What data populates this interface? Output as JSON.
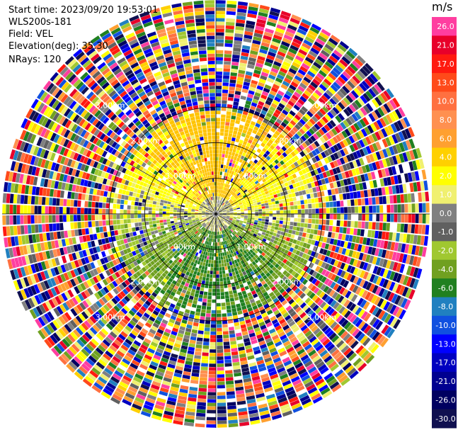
{
  "header": {
    "start_time": "Start time: 2023/09/20 19:53:01",
    "instrument": "WLS200s-181",
    "field": "Field: VEL",
    "elevation": "Elevation(deg): 35.30",
    "nrays": "NRays: 120"
  },
  "colorbar": {
    "unit": "m/s",
    "ticks": [
      "26.0",
      "21.0",
      "17.0",
      "13.0",
      "10.0",
      "8.0",
      "6.0",
      "4.0",
      "2.0",
      "1.0",
      "0.0",
      "-1.0",
      "-2.0",
      "-4.0",
      "-6.0",
      "-8.0",
      "-10.0",
      "-13.0",
      "-17.0",
      "-21.0",
      "-26.0",
      "-30.0"
    ],
    "colors": [
      "#ff3ea0",
      "#e8002a",
      "#ff1a10",
      "#ff4a1a",
      "#ff7040",
      "#ff9050",
      "#ffa030",
      "#ffd000",
      "#ffff00",
      "#f0f070",
      "#808080",
      "#606060",
      "#a0c830",
      "#70a020",
      "#208020",
      "#2080c0",
      "#1050e0",
      "#0000ff",
      "#0000c0",
      "#000090",
      "#000060",
      "#101050"
    ]
  },
  "chart_data": {
    "type": "ppi",
    "title": "",
    "field": "VEL",
    "elevation_deg": 35.3,
    "nrays": 120,
    "unit": "m/s",
    "vmin": -30,
    "vmax": 30,
    "max_range_km": 6.0,
    "range_ring_labels": [
      "1.00km",
      "2.00km",
      "3.00km"
    ],
    "ring_radii_km": [
      1,
      2,
      3
    ],
    "spoke_angles_deg": [
      0,
      30,
      60,
      90,
      120,
      150,
      180,
      210,
      240,
      270,
      300,
      330
    ]
  }
}
